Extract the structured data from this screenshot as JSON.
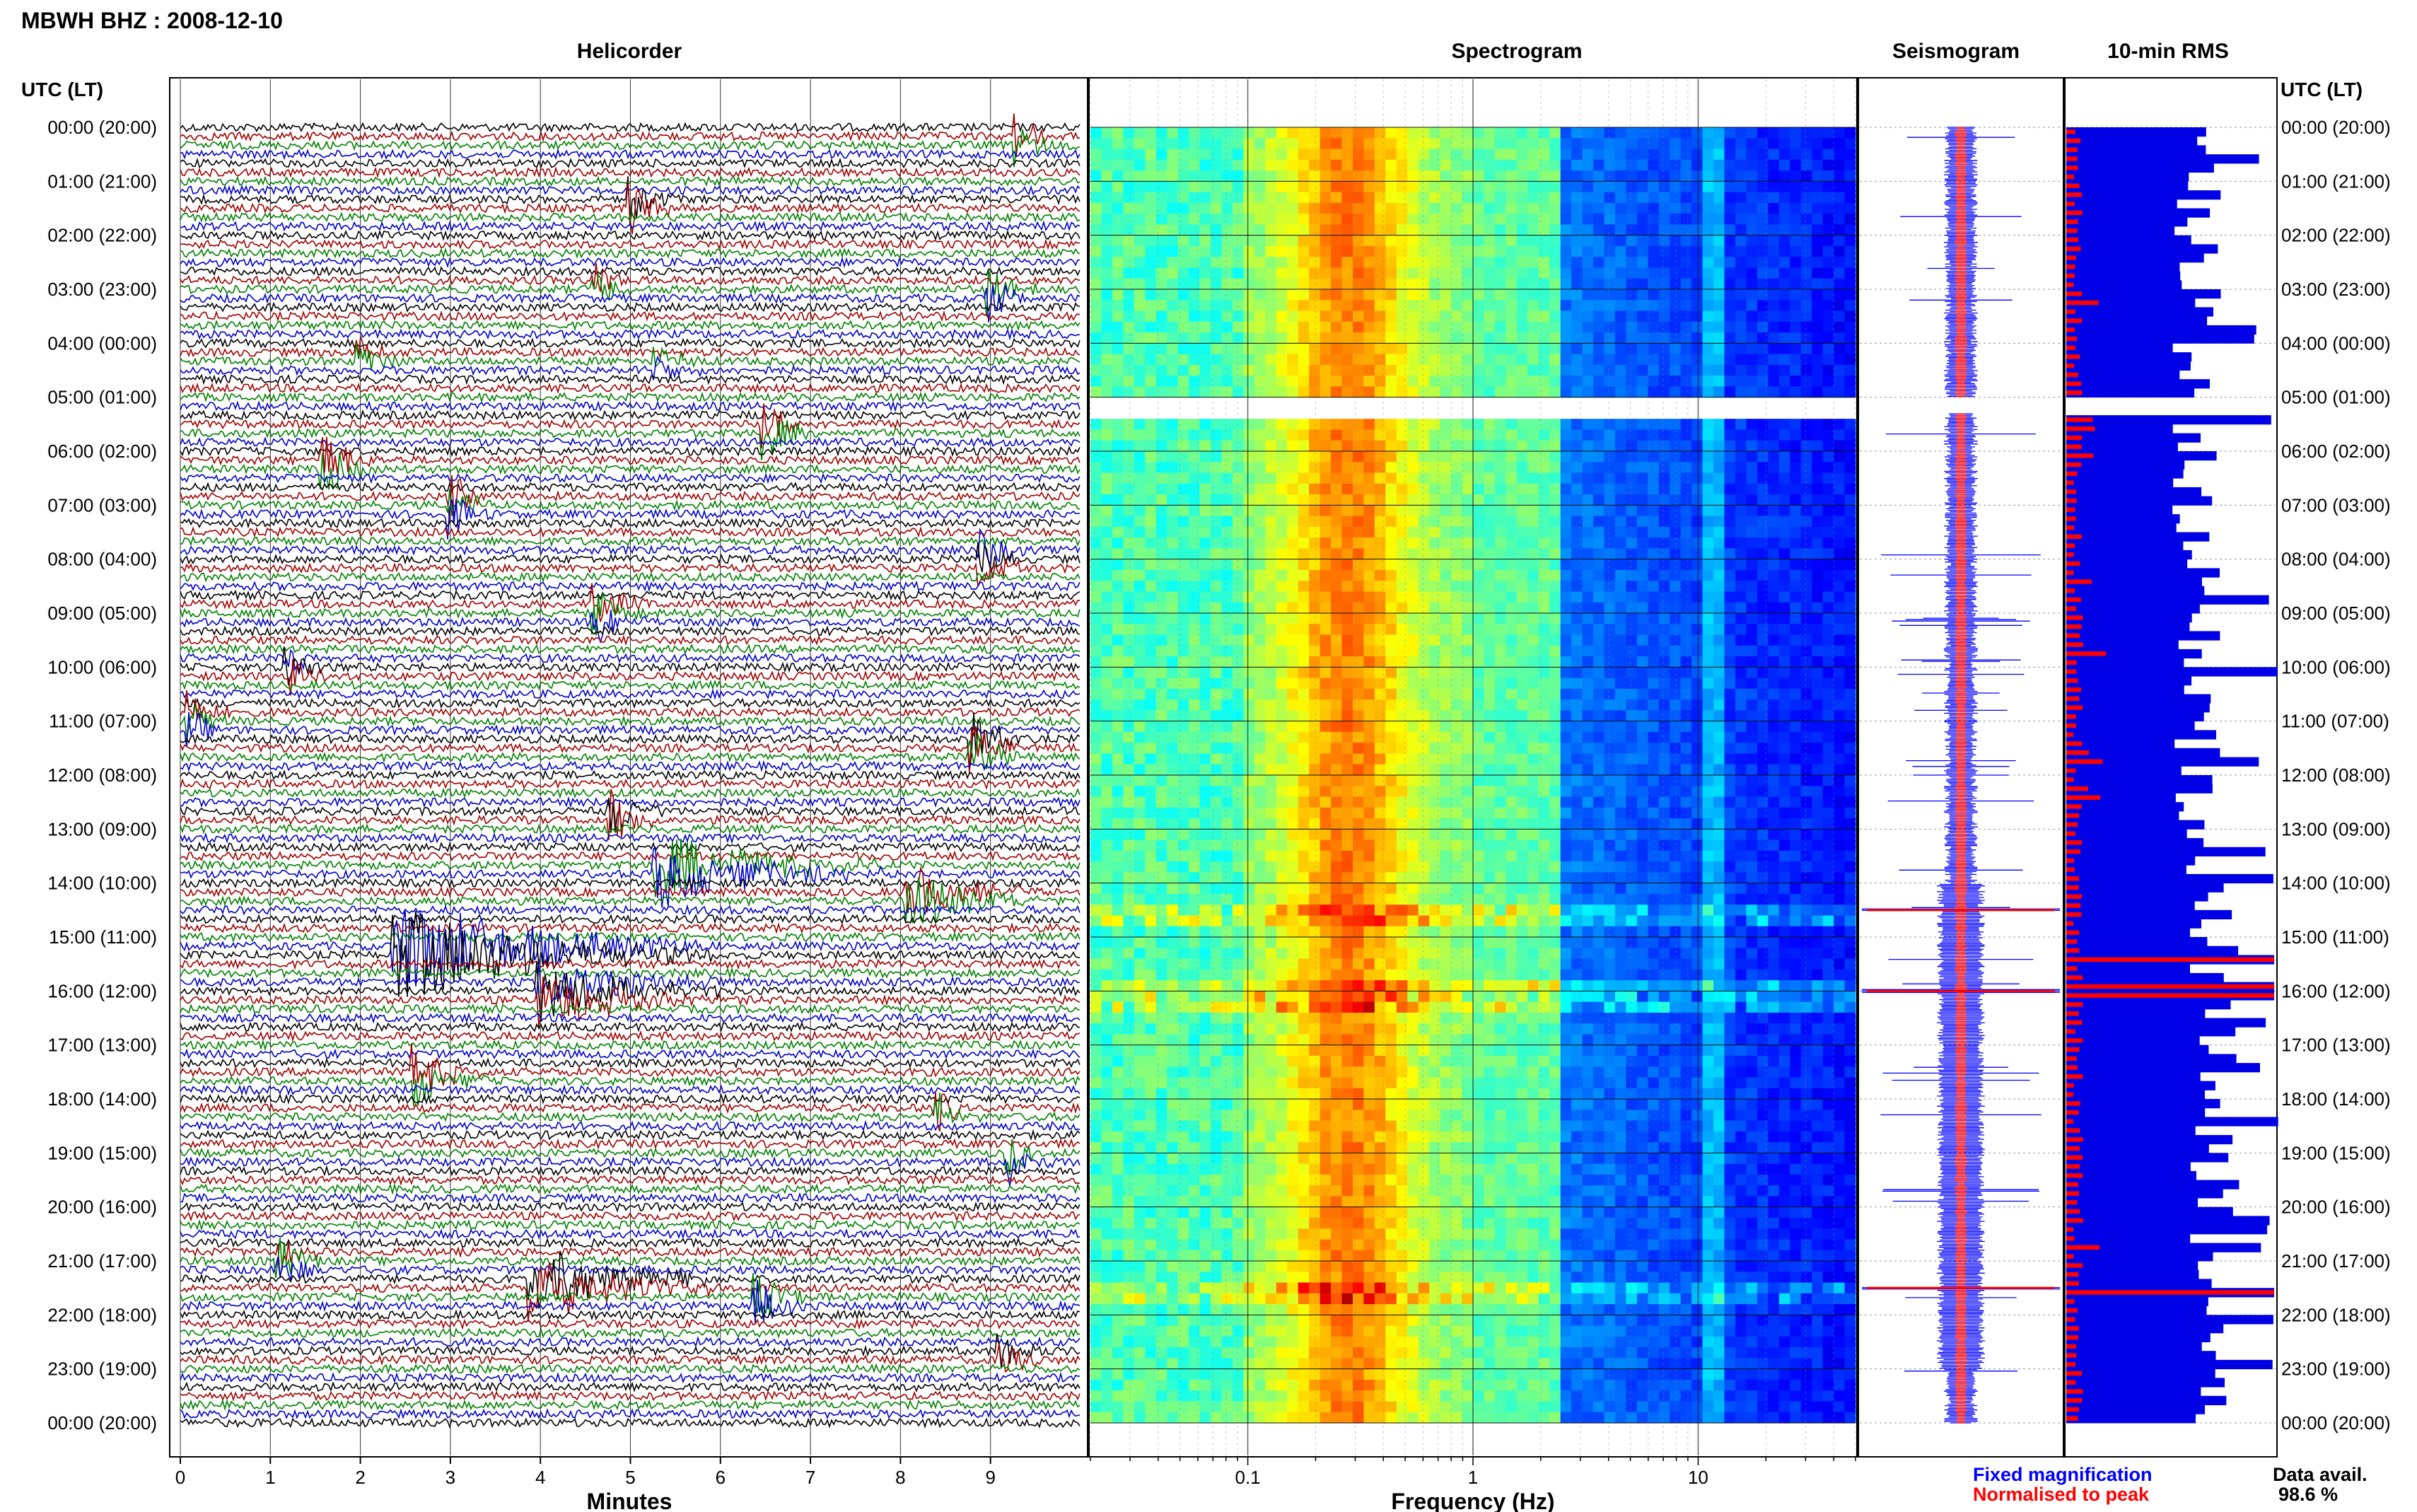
{
  "header": {
    "station_title": "MBWH BHZ : 2008-12-10",
    "left_axis_label": "UTC (LT)",
    "right_axis_label": "UTC (LT)"
  },
  "panels": {
    "helicorder_title": "Helicorder",
    "spectrogram_title": "Spectrogram",
    "seismogram_title": "Seismogram",
    "rms_title": "10-min RMS"
  },
  "legend": {
    "fixed_label": "Fixed magnification",
    "normalised_label": "Normalised to peak",
    "availability_label": "Data avail.",
    "availability_value": "98.6 %"
  },
  "colors": {
    "black": "#000000",
    "red": "#a00000",
    "green": "#008000",
    "blue": "#0000c8",
    "legend_blue": "#0000ff",
    "legend_red": "#ff0000"
  },
  "chart_data": [
    {
      "type": "line",
      "title": "Helicorder",
      "xlabel": "Minutes",
      "x_ticks": [
        "0",
        "1",
        "2",
        "3",
        "4",
        "5",
        "6",
        "7",
        "8",
        "9"
      ],
      "xlim": [
        0,
        10
      ],
      "ylabel": "UTC (LT)",
      "row_labels": [
        "00:00 (20:00)",
        "01:00 (21:00)",
        "02:00 (22:00)",
        "03:00 (23:00)",
        "04:00 (00:00)",
        "05:00 (01:00)",
        "06:00 (02:00)",
        "07:00 (03:00)",
        "08:00 (04:00)",
        "09:00 (05:00)",
        "10:00 (06:00)",
        "11:00 (07:00)",
        "12:00 (08:00)",
        "13:00 (09:00)",
        "14:00 (10:00)",
        "15:00 (11:00)",
        "16:00 (12:00)",
        "17:00 (13:00)",
        "18:00 (14:00)",
        "19:00 (15:00)",
        "20:00 (16:00)",
        "21:00 (17:00)",
        "22:00 (18:00)",
        "23:00 (19:00)",
        "00:00 (20:00)"
      ],
      "line_colors": [
        "black",
        "red",
        "green",
        "blue"
      ],
      "lines_per_hour": 6,
      "events": [
        {
          "hour": 0.3,
          "minute": 9.3,
          "amp": 2.5,
          "dur": 0.4
        },
        {
          "hour": 1.4,
          "minute": 5.0,
          "amp": 3,
          "dur": 0.6
        },
        {
          "hour": 2.9,
          "minute": 4.6,
          "amp": 2.2,
          "dur": 0.5
        },
        {
          "hour": 3.1,
          "minute": 9.0,
          "amp": 2.6,
          "dur": 0.5
        },
        {
          "hour": 4.2,
          "minute": 2.0,
          "amp": 2,
          "dur": 0.5
        },
        {
          "hour": 4.4,
          "minute": 5.3,
          "amp": 1.8,
          "dur": 0.5
        },
        {
          "hour": 5.6,
          "minute": 6.5,
          "amp": 3,
          "dur": 0.6
        },
        {
          "hour": 6.2,
          "minute": 1.6,
          "amp": 3,
          "dur": 0.6
        },
        {
          "hour": 7.0,
          "minute": 3.0,
          "amp": 2.4,
          "dur": 0.5
        },
        {
          "hour": 8.0,
          "minute": 8.9,
          "amp": 2.2,
          "dur": 0.5
        },
        {
          "hour": 9.0,
          "minute": 4.6,
          "amp": 2.8,
          "dur": 0.6
        },
        {
          "hour": 10.0,
          "minute": 1.2,
          "amp": 2.5,
          "dur": 0.5
        },
        {
          "hour": 11.0,
          "minute": 0.1,
          "amp": 2.2,
          "dur": 0.5
        },
        {
          "hour": 11.5,
          "minute": 8.8,
          "amp": 3,
          "dur": 0.6
        },
        {
          "hour": 12.8,
          "minute": 4.8,
          "amp": 3,
          "dur": 0.6
        },
        {
          "hour": 13.8,
          "minute": 5.3,
          "amp": 3.5,
          "dur": 2.5
        },
        {
          "hour": 14.2,
          "minute": 8.1,
          "amp": 3,
          "dur": 1.5
        },
        {
          "hour": 15.3,
          "minute": 2.4,
          "amp": 5,
          "dur": 3.5
        },
        {
          "hour": 16.0,
          "minute": 4.0,
          "amp": 3,
          "dur": 2.0
        },
        {
          "hour": 17.6,
          "minute": 2.6,
          "amp": 3,
          "dur": 0.8
        },
        {
          "hour": 18.2,
          "minute": 8.4,
          "amp": 2.5,
          "dur": 0.5
        },
        {
          "hour": 19.1,
          "minute": 9.2,
          "amp": 2.5,
          "dur": 0.5
        },
        {
          "hour": 21.0,
          "minute": 1.1,
          "amp": 2.5,
          "dur": 0.5
        },
        {
          "hour": 21.4,
          "minute": 3.9,
          "amp": 4,
          "dur": 2.0
        },
        {
          "hour": 21.7,
          "minute": 6.4,
          "amp": 3,
          "dur": 0.6
        },
        {
          "hour": 22.8,
          "minute": 9.1,
          "amp": 2,
          "dur": 0.5
        }
      ]
    },
    {
      "type": "heatmap",
      "title": "Spectrogram",
      "xlabel": "Frequency (Hz)",
      "x_scale": "log",
      "x_ticks": [
        "0.1",
        "1",
        "10"
      ],
      "xlim": [
        0.02,
        50
      ],
      "ylim_hours": [
        0,
        24
      ],
      "data_gap_hours": [
        5.0,
        5.3
      ],
      "colormap": "jet"
    },
    {
      "type": "bar",
      "title": "Seismogram",
      "series": [
        {
          "name": "Fixed magnification",
          "color": "blue"
        },
        {
          "name": "Normalised to peak",
          "color": "red"
        }
      ],
      "spike_hours": [
        14.5,
        16.0,
        21.5
      ]
    },
    {
      "type": "bar",
      "title": "10-min RMS",
      "orientation": "horizontal",
      "hours": [
        0,
        24
      ],
      "peak_hours": [
        15.4,
        16.0,
        21.6
      ],
      "data_gap_hours": [
        5.0,
        5.3
      ]
    }
  ]
}
